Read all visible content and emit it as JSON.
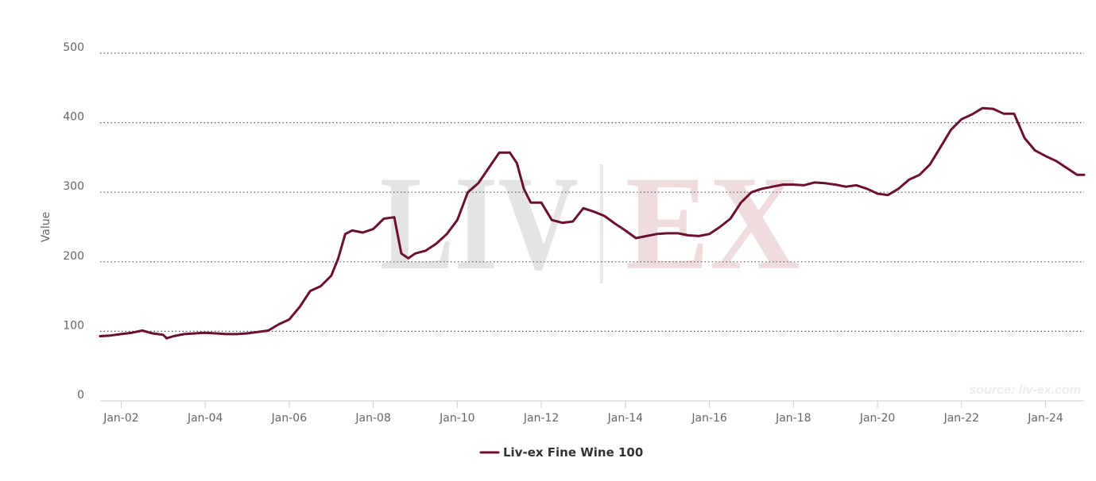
{
  "watermark": {
    "left": "LIV",
    "right": "EX"
  },
  "source": "source: liv-ex.com",
  "colors": {
    "line": "#6b0f33",
    "grid": "#555555",
    "axis_text": "#666666",
    "watermark_left": "#e4e4e4",
    "watermark_right": "#efdddd"
  },
  "chart_data": {
    "type": "line",
    "title": "",
    "xlabel": "",
    "ylabel": "Value",
    "ylim": [
      0,
      500
    ],
    "yticks": [
      0,
      100,
      200,
      300,
      400,
      500
    ],
    "xlim": [
      "2001-07",
      "2024-12"
    ],
    "xtick_labels": [
      "Jan-02",
      "Jan-04",
      "Jan-06",
      "Jan-08",
      "Jan-10",
      "Jan-12",
      "Jan-14",
      "Jan-16",
      "Jan-18",
      "Jan-20",
      "Jan-22",
      "Jan-24"
    ],
    "xticks": [
      "2002-01",
      "2004-01",
      "2006-01",
      "2008-01",
      "2010-01",
      "2012-01",
      "2014-01",
      "2016-01",
      "2018-01",
      "2020-01",
      "2022-01",
      "2024-01"
    ],
    "grid": true,
    "legend": "bottom-center",
    "series": [
      {
        "name": "Liv-ex Fine Wine 100",
        "color": "#6b0f33",
        "x": [
          "2001-07",
          "2001-10",
          "2002-01",
          "2002-04",
          "2002-07",
          "2002-10",
          "2003-01",
          "2003-02",
          "2003-04",
          "2003-07",
          "2003-10",
          "2004-01",
          "2004-04",
          "2004-07",
          "2004-10",
          "2005-01",
          "2005-04",
          "2005-07",
          "2005-10",
          "2006-01",
          "2006-04",
          "2006-07",
          "2006-10",
          "2007-01",
          "2007-03",
          "2007-05",
          "2007-07",
          "2007-10",
          "2008-01",
          "2008-04",
          "2008-07",
          "2008-09",
          "2008-11",
          "2009-01",
          "2009-04",
          "2009-07",
          "2009-10",
          "2010-01",
          "2010-04",
          "2010-07",
          "2010-10",
          "2011-01",
          "2011-04",
          "2011-06",
          "2011-08",
          "2011-10",
          "2012-01",
          "2012-04",
          "2012-07",
          "2012-10",
          "2013-01",
          "2013-04",
          "2013-07",
          "2013-10",
          "2014-01",
          "2014-04",
          "2014-07",
          "2014-10",
          "2015-01",
          "2015-04",
          "2015-07",
          "2015-10",
          "2016-01",
          "2016-04",
          "2016-07",
          "2016-10",
          "2017-01",
          "2017-04",
          "2017-07",
          "2017-10",
          "2018-01",
          "2018-04",
          "2018-07",
          "2018-10",
          "2019-01",
          "2019-04",
          "2019-07",
          "2019-10",
          "2020-01",
          "2020-04",
          "2020-07",
          "2020-10",
          "2021-01",
          "2021-04",
          "2021-07",
          "2021-10",
          "2022-01",
          "2022-04",
          "2022-07",
          "2022-10",
          "2023-01",
          "2023-04",
          "2023-07",
          "2023-10",
          "2024-01",
          "2024-04",
          "2024-07",
          "2024-10",
          "2024-12"
        ],
        "values": [
          93,
          94,
          96,
          98,
          101,
          97,
          95,
          90,
          93,
          96,
          97,
          98,
          97,
          96,
          96,
          97,
          99,
          101,
          110,
          117,
          135,
          158,
          165,
          180,
          205,
          240,
          245,
          242,
          247,
          262,
          264,
          212,
          205,
          212,
          216,
          226,
          240,
          260,
          300,
          313,
          335,
          357,
          357,
          342,
          305,
          285,
          285,
          260,
          256,
          258,
          277,
          272,
          266,
          255,
          245,
          234,
          237,
          240,
          241,
          241,
          238,
          237,
          240,
          250,
          262,
          285,
          300,
          305,
          308,
          311,
          311,
          310,
          314,
          313,
          311,
          308,
          310,
          305,
          298,
          296,
          305,
          318,
          325,
          340,
          365,
          390,
          405,
          412,
          421,
          420,
          413,
          413,
          378,
          360,
          352,
          345,
          335,
          325,
          325
        ]
      }
    ]
  }
}
